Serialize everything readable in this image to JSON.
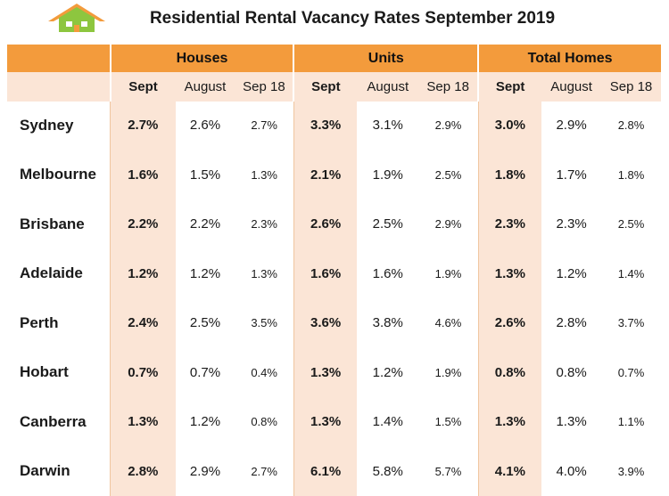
{
  "header": {
    "title": "Residential Rental Vacancy Rates September 2019"
  },
  "colors": {
    "header_orange": "#f39b3c",
    "sept_highlight": "#fbe5d6",
    "logo_roof": "#f39b3c",
    "logo_body": "#8dc63f"
  },
  "logo": {
    "icon": "house-logo-icon"
  },
  "chart_data": {
    "type": "table",
    "title": "Residential Rental Vacancy Rates September 2019",
    "groups": [
      "Houses",
      "Units",
      "Total Homes"
    ],
    "subcolumns": [
      "Sept",
      "August",
      "Sep 18"
    ],
    "rows": [
      {
        "city": "Sydney",
        "values": [
          "2.7%",
          "2.6%",
          "2.7%",
          "3.3%",
          "3.1%",
          "2.9%",
          "3.0%",
          "2.9%",
          "2.8%"
        ]
      },
      {
        "city": "Melbourne",
        "values": [
          "1.6%",
          "1.5%",
          "1.3%",
          "2.1%",
          "1.9%",
          "2.5%",
          "1.8%",
          "1.7%",
          "1.8%"
        ]
      },
      {
        "city": "Brisbane",
        "values": [
          "2.2%",
          "2.2%",
          "2.3%",
          "2.6%",
          "2.5%",
          "2.9%",
          "2.3%",
          "2.3%",
          "2.5%"
        ]
      },
      {
        "city": "Adelaide",
        "values": [
          "1.2%",
          "1.2%",
          "1.3%",
          "1.6%",
          "1.6%",
          "1.9%",
          "1.3%",
          "1.2%",
          "1.4%"
        ]
      },
      {
        "city": "Perth",
        "values": [
          "2.4%",
          "2.5%",
          "3.5%",
          "3.6%",
          "3.8%",
          "4.6%",
          "2.6%",
          "2.8%",
          "3.7%"
        ]
      },
      {
        "city": "Hobart",
        "values": [
          "0.7%",
          "0.7%",
          "0.4%",
          "1.3%",
          "1.2%",
          "1.9%",
          "0.8%",
          "0.8%",
          "0.7%"
        ]
      },
      {
        "city": "Canberra",
        "values": [
          "1.3%",
          "1.2%",
          "0.8%",
          "1.3%",
          "1.4%",
          "1.5%",
          "1.3%",
          "1.3%",
          "1.1%"
        ]
      },
      {
        "city": "Darwin",
        "values": [
          "2.8%",
          "2.9%",
          "2.7%",
          "6.1%",
          "5.8%",
          "5.7%",
          "4.1%",
          "4.0%",
          "3.9%"
        ]
      }
    ]
  }
}
